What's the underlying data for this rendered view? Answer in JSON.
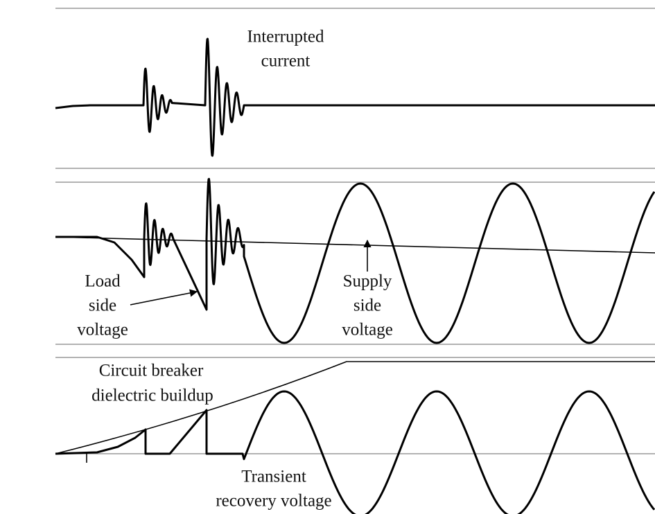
{
  "annotations": {
    "interrupted_current": [
      "Interrupted",
      "current"
    ],
    "load_side_voltage": [
      "Load",
      "side",
      "voltage"
    ],
    "supply_side_voltage": [
      "Supply",
      "side",
      "voltage"
    ],
    "dielectric_buildup": [
      "Circuit breaker",
      "dielectric buildup"
    ],
    "transient_recovery_voltage": [
      "Transient",
      "recovery voltage"
    ]
  }
}
